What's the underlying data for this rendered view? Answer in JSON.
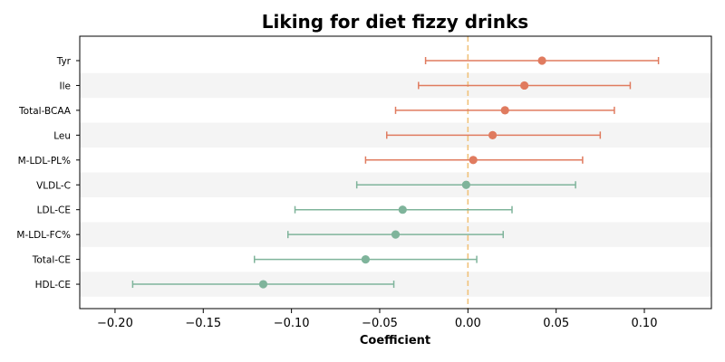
{
  "chart_data": {
    "type": "forest",
    "title": "Liking for diet fizzy drinks",
    "xlabel": "Coefficient",
    "ylabel": "",
    "xlim": [
      -0.22,
      0.138
    ],
    "xticks": [
      -0.2,
      -0.15,
      -0.1,
      -0.05,
      0.0,
      0.05,
      0.1
    ],
    "xtick_labels": [
      "−0.20",
      "−0.15",
      "−0.10",
      "−0.05",
      "0.00",
      "0.05",
      "0.10"
    ],
    "reference_line": 0.0,
    "grid": false,
    "alternating_row_shading": true,
    "colors": {
      "positive": "#e07b5f",
      "negative": "#7fb49b",
      "reference": "#f0c27b",
      "row_shade": "#f4f4f4"
    },
    "rows": [
      {
        "label": "Tyr",
        "coef": 0.042,
        "lo": -0.024,
        "hi": 0.108
      },
      {
        "label": "Ile",
        "coef": 0.032,
        "lo": -0.028,
        "hi": 0.092
      },
      {
        "label": "Total-BCAA",
        "coef": 0.021,
        "lo": -0.041,
        "hi": 0.083
      },
      {
        "label": "Leu",
        "coef": 0.014,
        "lo": -0.046,
        "hi": 0.075
      },
      {
        "label": "M-LDL-PL%",
        "coef": 0.003,
        "lo": -0.058,
        "hi": 0.065
      },
      {
        "label": "VLDL-C",
        "coef": -0.001,
        "lo": -0.063,
        "hi": 0.061
      },
      {
        "label": "LDL-CE",
        "coef": -0.037,
        "lo": -0.098,
        "hi": 0.025
      },
      {
        "label": "M-LDL-FC%",
        "coef": -0.041,
        "lo": -0.102,
        "hi": 0.02
      },
      {
        "label": "Total-CE",
        "coef": -0.058,
        "lo": -0.121,
        "hi": 0.005
      },
      {
        "label": "HDL-CE",
        "coef": -0.116,
        "lo": -0.19,
        "hi": -0.042
      }
    ]
  }
}
